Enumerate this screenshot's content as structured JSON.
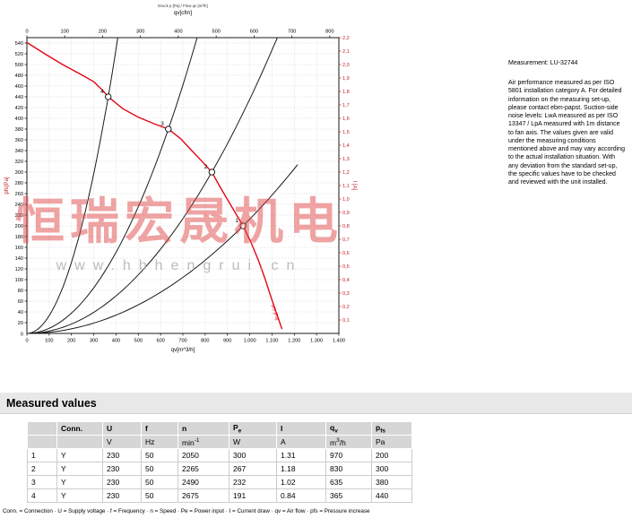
{
  "side_panel": {
    "measurement_label": "Measurement: LU-32744",
    "description": "Air performance measured as per ISO 5801 installation category A. For detailed information on the measuring set-up, please contact ebm-papst. Suction-side noise levels: LwA measured as per ISO 13347 / LpA measured with 1m distance to fan axis. The values given are valid under the measuring conditions mentioned above and may vary according to the actual installation situation. With any deviation from the standard set-up, the specific values have to be checked and reviewed with the unit installed."
  },
  "measured_values": {
    "section_title": "Measured values",
    "table": {
      "columns": [
        {
          "label": ""
        },
        {
          "label": "Conn."
        },
        {
          "label": "U"
        },
        {
          "label": "f"
        },
        {
          "label": "n"
        },
        {
          "label": "P",
          "sub": "e"
        },
        {
          "label": "I"
        },
        {
          "label": "q",
          "sub": "v"
        },
        {
          "label": "p",
          "sub": "fs"
        }
      ],
      "units": [
        {
          "label": ""
        },
        {
          "label": ""
        },
        {
          "label": "V"
        },
        {
          "label": "Hz"
        },
        {
          "label": "min",
          "sup": "-1"
        },
        {
          "label": "W"
        },
        {
          "label": "A"
        },
        {
          "label": "m",
          "sup": "3",
          "tail": "/h"
        },
        {
          "label": "Pa"
        }
      ],
      "rows": [
        [
          "1",
          "Y",
          "230",
          "50",
          "2050",
          "300",
          "1.31",
          "970",
          "200"
        ],
        [
          "2",
          "Y",
          "230",
          "50",
          "2265",
          "267",
          "1.18",
          "830",
          "300"
        ],
        [
          "3",
          "Y",
          "230",
          "50",
          "2490",
          "232",
          "1.02",
          "635",
          "380"
        ],
        [
          "4",
          "Y",
          "230",
          "50",
          "2675",
          "191",
          "0.84",
          "365",
          "440"
        ]
      ]
    },
    "legend": "Conn. = Connection · U = Supply voltage · f = Frequency · n = Speed · Pe = Power input · I = Current draw · qv = Air flow · pfs = Pressure increase"
  },
  "chart_data": {
    "type": "line",
    "title": "Druck p [Pa] / Flow qv [m³/h]",
    "axes": {
      "top": {
        "label": "qv[cfm]",
        "min": 0,
        "max": 800,
        "step": 100,
        "m3h_per_cfm": 1.699,
        "tick_labels": [
          "0",
          "100",
          "200",
          "300",
          "400",
          "500",
          "600",
          "700",
          "800"
        ]
      },
      "bottom": {
        "label": "qv[m^3/h]",
        "min": 0,
        "max": 1400,
        "step": 100,
        "tick_labels": [
          "0",
          "100",
          "200",
          "300",
          "400",
          "500",
          "600",
          "700",
          "800",
          "900",
          "1.000",
          "1.100",
          "1.200",
          "1.300",
          "1.400"
        ]
      },
      "left": {
        "label": "pfs[Pa]",
        "color": "#c42127",
        "min": 0,
        "max": 550,
        "step": 20,
        "origin_label": "0",
        "tick_labels": [
          "20",
          "40",
          "60",
          "80",
          "100",
          "120",
          "140",
          "160",
          "180",
          "200",
          "220",
          "240",
          "260",
          "280",
          "300",
          "320",
          "340",
          "360",
          "380",
          "400",
          "420",
          "440",
          "460",
          "480",
          "500",
          "520",
          "540"
        ]
      },
      "right": {
        "label": "I [A]",
        "color": "#c42127",
        "min": 0,
        "max": 2.2,
        "step": 0.1,
        "tick_labels": [
          "0,1",
          "0,2",
          "0,3",
          "0,4",
          "0,5",
          "0,6",
          "0,7",
          "0,8",
          "0,9",
          "1,0",
          "1,1",
          "1,2",
          "1,3",
          "1,4",
          "1,5",
          "1,6",
          "1,7",
          "1,8",
          "1,9",
          "2,0",
          "2,1",
          "2,2"
        ]
      },
      "grid": true
    },
    "fan_curve": {
      "name": "pfs",
      "color": "#e30613",
      "end_label": "pfs [Pa]",
      "points": [
        [
          0,
          541
        ],
        [
          80,
          520
        ],
        [
          160,
          500
        ],
        [
          240,
          482
        ],
        [
          300,
          468
        ],
        [
          340,
          452
        ],
        [
          365,
          440
        ],
        [
          430,
          418
        ],
        [
          500,
          402
        ],
        [
          570,
          390
        ],
        [
          635,
          380
        ],
        [
          690,
          362
        ],
        [
          740,
          340
        ],
        [
          790,
          318
        ],
        [
          830,
          300
        ],
        [
          870,
          270
        ],
        [
          920,
          235
        ],
        [
          970,
          200
        ],
        [
          1005,
          170
        ],
        [
          1040,
          135
        ],
        [
          1070,
          100
        ],
        [
          1100,
          62
        ],
        [
          1125,
          32
        ],
        [
          1145,
          8
        ]
      ]
    },
    "operating_points": [
      {
        "label": "1",
        "qv": 970,
        "pfs": 200,
        "system_curve_end": 1215
      },
      {
        "label": "2",
        "qv": 830,
        "pfs": 300
      },
      {
        "label": "3",
        "qv": 635,
        "pfs": 380
      },
      {
        "label": "4",
        "qv": 365,
        "pfs": 440
      }
    ],
    "watermark": {
      "text": "恒瑞宏晟机电",
      "subtext": "www.hbhengrui.cn"
    }
  }
}
